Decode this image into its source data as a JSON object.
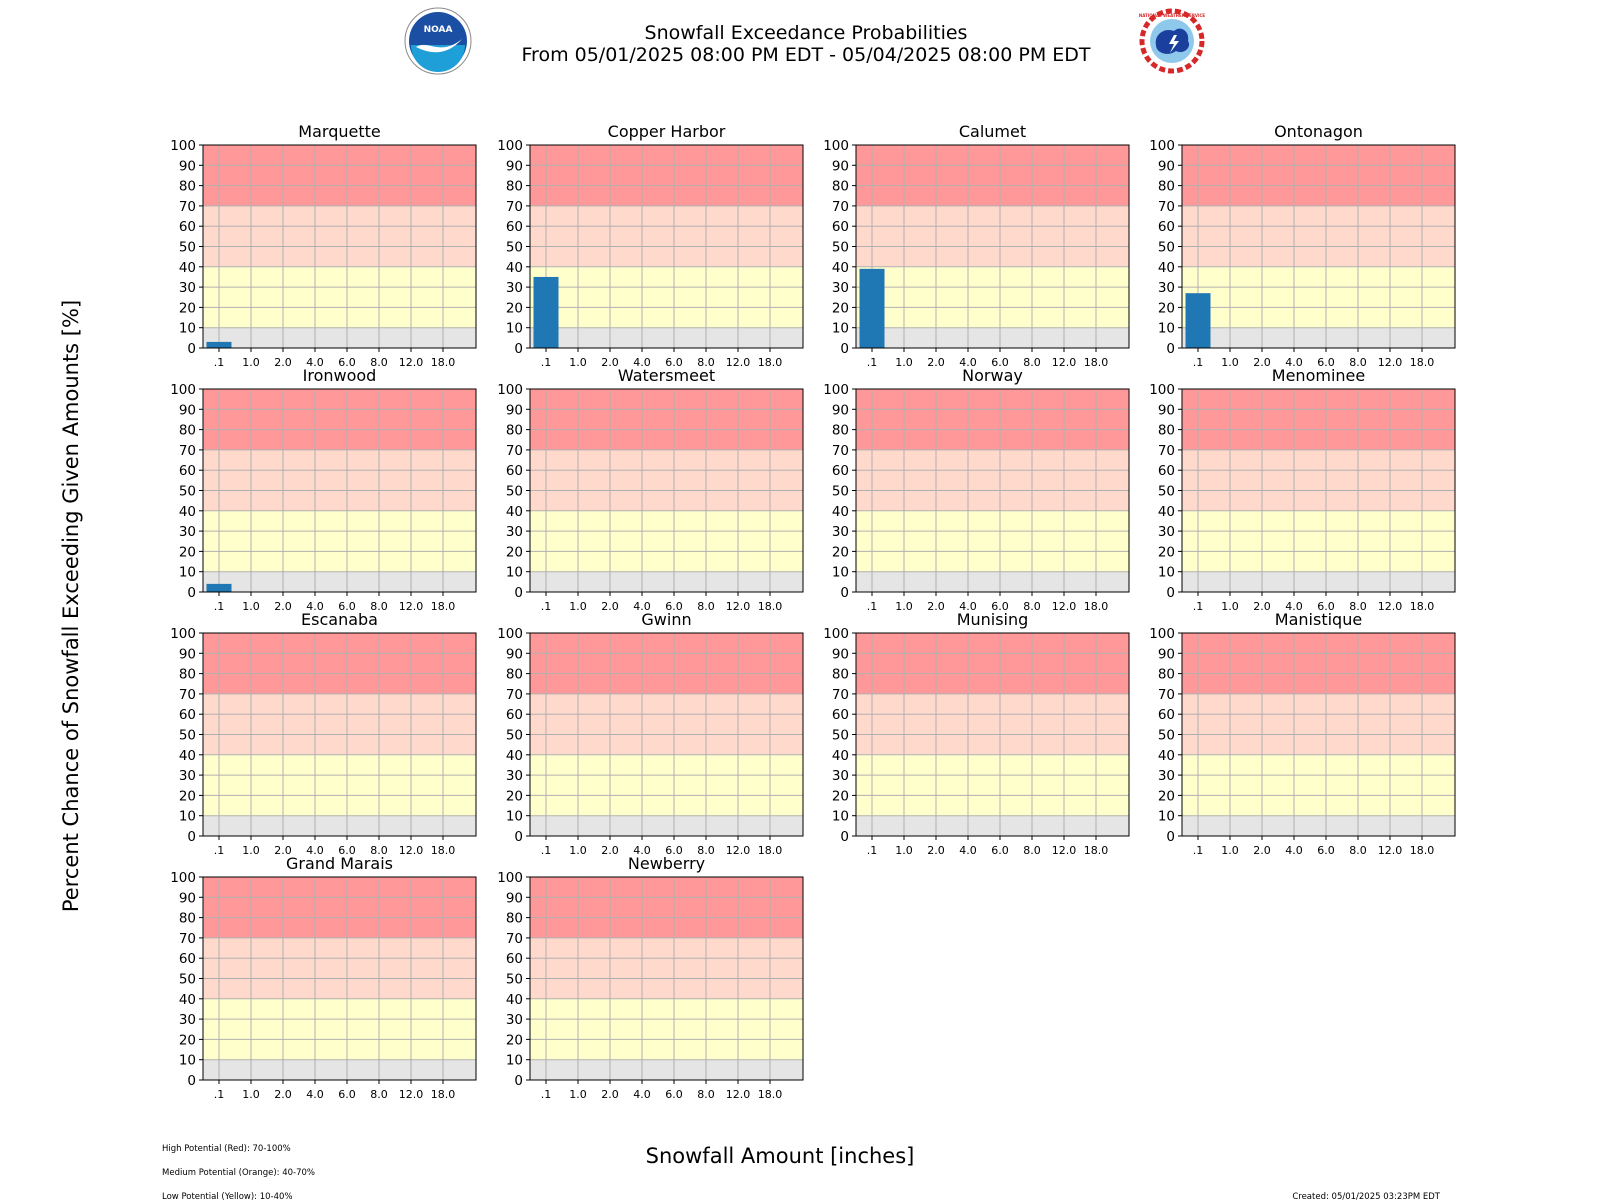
{
  "header": {
    "title_line1": "Snowfall Exceedance Probabilities",
    "title_line2": "From 05/01/2025 08:00 PM EDT - 05/04/2025 08:00 PM EDT"
  },
  "logos": {
    "left": "noaa-logo",
    "right": "nws-logo",
    "left_text": "NOAA",
    "right_text": "NATIONAL WEATHER SERVICE"
  },
  "axes": {
    "ylabel": "Percent Chance of Snowfall Exceeding Given Amounts [%]",
    "xlabel": "Snowfall Amount [inches]"
  },
  "footnotes": {
    "high": "High Potential (Red): 70-100%",
    "medium": "Medium Potential (Orange): 40-70%",
    "low": "Low Potential (Yellow): 10-40%",
    "created": "Created: 05/01/2025 03:23PM EDT"
  },
  "colors": {
    "high": "#ff9999",
    "medium": "#ffd9cc",
    "low": "#ffffcc",
    "minimal": "#e5e5e5",
    "bar": "#1f77b4",
    "grid": "#b0b0b0"
  },
  "chart_data": {
    "type": "bar",
    "categories": [
      ".1",
      "1.0",
      "2.0",
      "4.0",
      "6.0",
      "8.0",
      "12.0",
      "18.0"
    ],
    "ylim": [
      0,
      100
    ],
    "yticks": [
      0,
      10,
      20,
      30,
      40,
      50,
      60,
      70,
      80,
      90,
      100
    ],
    "grid": true,
    "bands": [
      {
        "from": 70,
        "to": 100,
        "color": "#ff9999"
      },
      {
        "from": 40,
        "to": 70,
        "color": "#ffd9cc"
      },
      {
        "from": 10,
        "to": 40,
        "color": "#ffffcc"
      },
      {
        "from": 0,
        "to": 10,
        "color": "#e5e5e5"
      }
    ],
    "panels": [
      {
        "name": "Marquette",
        "values": [
          3,
          0,
          0,
          0,
          0,
          0,
          0,
          0
        ]
      },
      {
        "name": "Copper Harbor",
        "values": [
          35,
          0,
          0,
          0,
          0,
          0,
          0,
          0
        ]
      },
      {
        "name": "Calumet",
        "values": [
          39,
          0,
          0,
          0,
          0,
          0,
          0,
          0
        ]
      },
      {
        "name": "Ontonagon",
        "values": [
          27,
          0,
          0,
          0,
          0,
          0,
          0,
          0
        ]
      },
      {
        "name": "Ironwood",
        "values": [
          4,
          0,
          0,
          0,
          0,
          0,
          0,
          0
        ]
      },
      {
        "name": "Watersmeet",
        "values": [
          0,
          0,
          0,
          0,
          0,
          0,
          0,
          0
        ]
      },
      {
        "name": "Norway",
        "values": [
          0,
          0,
          0,
          0,
          0,
          0,
          0,
          0
        ]
      },
      {
        "name": "Menominee",
        "values": [
          0,
          0,
          0,
          0,
          0,
          0,
          0,
          0
        ]
      },
      {
        "name": "Escanaba",
        "values": [
          0,
          0,
          0,
          0,
          0,
          0,
          0,
          0
        ]
      },
      {
        "name": "Gwinn",
        "values": [
          0,
          0,
          0,
          0,
          0,
          0,
          0,
          0
        ]
      },
      {
        "name": "Munising",
        "values": [
          0,
          0,
          0,
          0,
          0,
          0,
          0,
          0
        ]
      },
      {
        "name": "Manistique",
        "values": [
          0,
          0,
          0,
          0,
          0,
          0,
          0,
          0
        ]
      },
      {
        "name": "Grand Marais",
        "values": [
          0,
          0,
          0,
          0,
          0,
          0,
          0,
          0
        ]
      },
      {
        "name": "Newberry",
        "values": [
          0,
          0,
          0,
          0,
          0,
          0,
          0,
          0
        ]
      }
    ]
  }
}
